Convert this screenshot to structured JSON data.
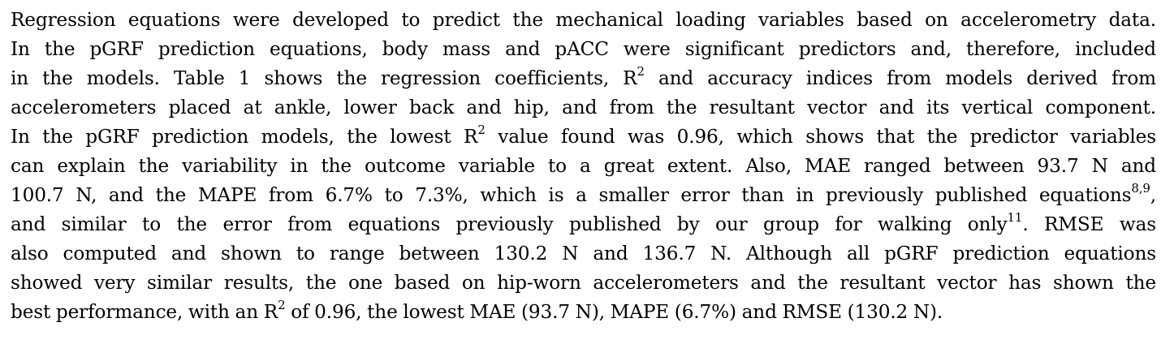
{
  "paragraph": {
    "lines": [
      {
        "a": "Regression equations were developed to predict the mechanical loading variables based on accelerometry data."
      },
      {
        "a": "In the pGRF prediction equations, body mass and pACC were significant predictors and, therefore, included"
      },
      {
        "a": "in the models. Table 1 shows the regression coefficients, R",
        "sup": "2",
        "b": " and accuracy indices from models derived from"
      },
      {
        "a": "accelerometers placed at ankle, lower back and hip, and from the resultant vector and its vertical component."
      },
      {
        "a": "In the pGRF prediction models, the lowest R",
        "sup": "2",
        "b": " value found was 0.96, which shows that the predictor variables"
      },
      {
        "a": "can explain the variability in the outcome variable to a great extent. Also, MAE ranged between 93.7 N and"
      },
      {
        "a": "100.7 N, and the MAPE from 6.7% to 7.3%, which is a smaller error than in previously published equations",
        "sup": "8,9",
        "b": ","
      },
      {
        "a": "and similar to the error from equations previously published by our group for walking only",
        "sup": "11",
        "b": ". RMSE was"
      },
      {
        "a": "also computed and shown to range between 130.2 N and 136.7 N. Although all pGRF prediction equations"
      },
      {
        "a": "showed very similar results, the one based on hip-worn accelerometers and the resultant vector has shown the"
      },
      {
        "a": "best performance, with an R",
        "sup": "2",
        "b": " of 0.96, the lowest MAE (93.7 N), MAPE (6.7%) and RMSE (130.2 N)."
      }
    ]
  }
}
